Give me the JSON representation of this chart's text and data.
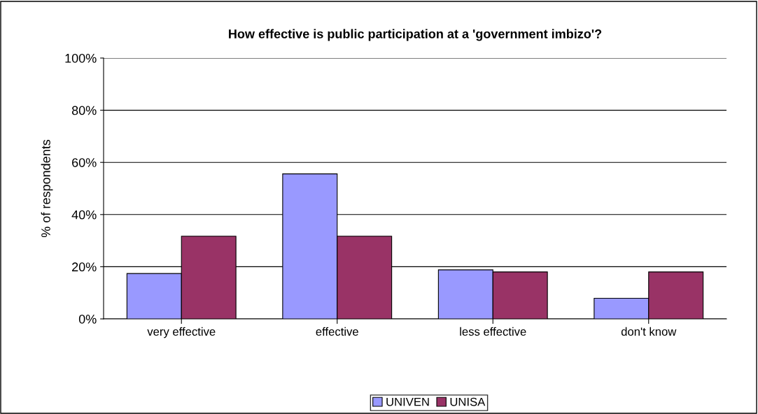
{
  "chart_data": {
    "type": "bar",
    "title": "How effective is public participation at a 'government imbizo'?",
    "ylabel": "% of respondents",
    "categories": [
      "very effective",
      "effective",
      "less effective",
      "don't know"
    ],
    "series": [
      {
        "name": "UNIVEN",
        "color": "#9999ff",
        "values": [
          17.4,
          55.6,
          18.8,
          7.9
        ]
      },
      {
        "name": "UNISA",
        "color": "#993366",
        "values": [
          31.7,
          31.7,
          18.0,
          18.0
        ]
      }
    ],
    "ylim": [
      0,
      100
    ],
    "yticks": [
      {
        "value": 0,
        "label": "0%"
      },
      {
        "value": 20,
        "label": "20%"
      },
      {
        "value": 40,
        "label": "40%"
      },
      {
        "value": 60,
        "label": "60%"
      },
      {
        "value": 80,
        "label": "80%"
      },
      {
        "value": 100,
        "label": "100%"
      }
    ],
    "grid": "y",
    "legend": "bottom"
  }
}
